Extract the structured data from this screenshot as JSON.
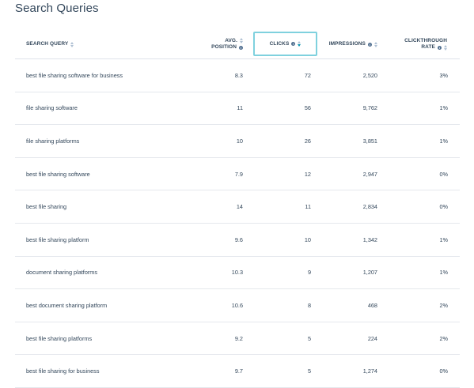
{
  "title": "Search Queries",
  "columns": {
    "query": "SEARCH QUERY",
    "position_line1": "AVG.",
    "position_line2": "POSITION",
    "clicks": "CLICKS",
    "impressions": "IMPRESSIONS",
    "ctr_line1": "CLICKTHROUGH",
    "ctr_line2": "RATE"
  },
  "sort": {
    "column": "clicks",
    "direction": "descending",
    "highlight_color": "#7fd1de"
  },
  "rows": [
    {
      "query": "best file sharing software for business",
      "position": "8.3",
      "clicks": "72",
      "impressions": "2,520",
      "ctr": "3%"
    },
    {
      "query": "file sharing software",
      "position": "11",
      "clicks": "56",
      "impressions": "9,762",
      "ctr": "1%"
    },
    {
      "query": "file sharing platforms",
      "position": "10",
      "clicks": "26",
      "impressions": "3,851",
      "ctr": "1%"
    },
    {
      "query": "best file sharing software",
      "position": "7.9",
      "clicks": "12",
      "impressions": "2,947",
      "ctr": "0%"
    },
    {
      "query": "best file sharing",
      "position": "14",
      "clicks": "11",
      "impressions": "2,834",
      "ctr": "0%"
    },
    {
      "query": "best file sharing platform",
      "position": "9.6",
      "clicks": "10",
      "impressions": "1,342",
      "ctr": "1%"
    },
    {
      "query": "document sharing platforms",
      "position": "10.3",
      "clicks": "9",
      "impressions": "1,207",
      "ctr": "1%"
    },
    {
      "query": "best document sharing platform",
      "position": "10.6",
      "clicks": "8",
      "impressions": "468",
      "ctr": "2%"
    },
    {
      "query": "best file sharing platforms",
      "position": "9.2",
      "clicks": "5",
      "impressions": "224",
      "ctr": "2%"
    },
    {
      "query": "best file sharing for business",
      "position": "9.7",
      "clicks": "5",
      "impressions": "1,274",
      "ctr": "0%"
    }
  ]
}
